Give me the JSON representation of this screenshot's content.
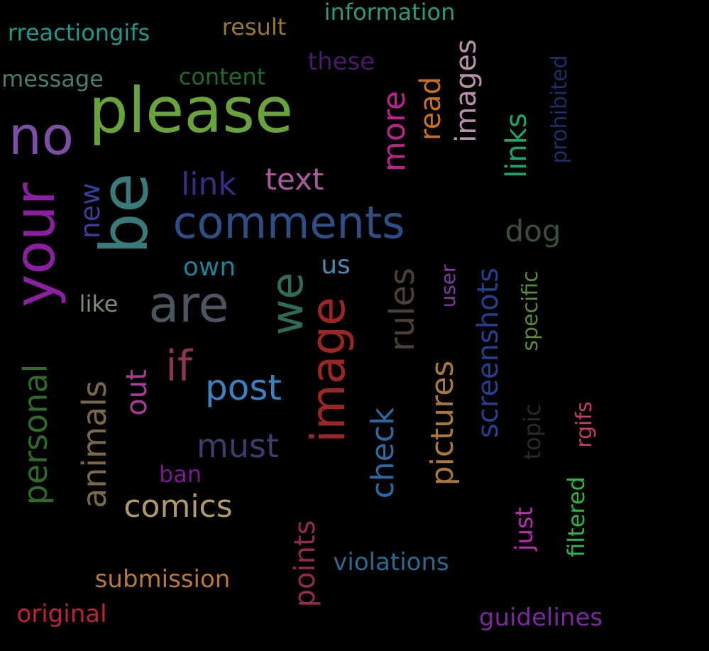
{
  "words": [
    {
      "text": "please",
      "color": "#6aa33a",
      "orientation": "horizontal"
    },
    {
      "text": "your",
      "color": "#8a1fa0",
      "orientation": "vertical"
    },
    {
      "text": "be",
      "color": "#3a7a7a",
      "orientation": "vertical"
    },
    {
      "text": "no",
      "color": "#7b4fa6",
      "orientation": "horizontal"
    },
    {
      "text": "comments",
      "color": "#2e4e86",
      "orientation": "horizontal"
    },
    {
      "text": "are",
      "color": "#4d5560",
      "orientation": "horizontal"
    },
    {
      "text": "we",
      "color": "#2f6b55",
      "orientation": "vertical"
    },
    {
      "text": "image",
      "color": "#9c2626",
      "orientation": "vertical"
    },
    {
      "text": "rules",
      "color": "#4a4036",
      "orientation": "vertical"
    },
    {
      "text": "if",
      "color": "#8c3454",
      "orientation": "horizontal"
    },
    {
      "text": "post",
      "color": "#3c82c0",
      "orientation": "horizontal"
    },
    {
      "text": "personal",
      "color": "#2f6a2a",
      "orientation": "vertical"
    },
    {
      "text": "animals",
      "color": "#7a6848",
      "orientation": "vertical"
    },
    {
      "text": "pictures",
      "color": "#a87838",
      "orientation": "vertical"
    },
    {
      "text": "screenshots",
      "color": "#283e8a",
      "orientation": "vertical"
    },
    {
      "text": "check",
      "color": "#2a6aa0",
      "orientation": "vertical"
    },
    {
      "text": "must",
      "color": "#3a3e68",
      "orientation": "horizontal"
    },
    {
      "text": "comics",
      "color": "#b09a6a",
      "orientation": "horizontal"
    },
    {
      "text": "more",
      "color": "#b8248a",
      "orientation": "vertical"
    },
    {
      "text": "images",
      "color": "#b890aa",
      "orientation": "vertical"
    },
    {
      "text": "read",
      "color": "#c8701c",
      "orientation": "vertical"
    },
    {
      "text": "link",
      "color": "#3e2a88",
      "orientation": "horizontal"
    },
    {
      "text": "text",
      "color": "#a85a9a",
      "orientation": "horizontal"
    },
    {
      "text": "new",
      "color": "#3a3e98",
      "orientation": "vertical"
    },
    {
      "text": "out",
      "color": "#a83a9a",
      "orientation": "vertical"
    },
    {
      "text": "points",
      "color": "#902a50",
      "orientation": "vertical"
    },
    {
      "text": "links",
      "color": "#1aa868",
      "orientation": "vertical"
    },
    {
      "text": "dog",
      "color": "#38503a",
      "orientation": "horizontal"
    },
    {
      "text": "own",
      "color": "#20809a",
      "orientation": "horizontal"
    },
    {
      "text": "us",
      "color": "#4a8ab0",
      "orientation": "horizontal"
    },
    {
      "text": "like",
      "color": "#7a8a7a",
      "orientation": "horizontal"
    },
    {
      "text": "ban",
      "color": "#7a1a90",
      "orientation": "horizontal"
    },
    {
      "text": "submission",
      "color": "#b87a38",
      "orientation": "horizontal"
    },
    {
      "text": "original",
      "color": "#c0203a",
      "orientation": "horizontal"
    },
    {
      "text": "violations",
      "color": "#2a6a90",
      "orientation": "horizontal"
    },
    {
      "text": "guidelines",
      "color": "#7a2a9a",
      "orientation": "horizontal"
    },
    {
      "text": "just",
      "color": "#b82ab0",
      "orientation": "vertical"
    },
    {
      "text": "filtered",
      "color": "#2ab848",
      "orientation": "vertical"
    },
    {
      "text": "rgifs",
      "color": "#c83a6a",
      "orientation": "vertical"
    },
    {
      "text": "topic",
      "color": "#2a2a2a",
      "orientation": "vertical"
    },
    {
      "text": "specific",
      "color": "#5a8a3a",
      "orientation": "vertical"
    },
    {
      "text": "user",
      "color": "#7a3aa0",
      "orientation": "vertical"
    },
    {
      "text": "prohibited",
      "color": "#1e2e6a",
      "orientation": "vertical"
    },
    {
      "text": "content",
      "color": "#1e6a2a",
      "orientation": "horizontal"
    },
    {
      "text": "these",
      "color": "#4a1a6a",
      "orientation": "horizontal"
    },
    {
      "text": "message",
      "color": "#4a7a6a",
      "orientation": "horizontal"
    },
    {
      "text": "result",
      "color": "#9a7a2a",
      "orientation": "horizontal"
    },
    {
      "text": "information",
      "color": "#2a9a7a",
      "orientation": "horizontal"
    },
    {
      "text": "rreactiongifs",
      "color": "#1e9a8a",
      "orientation": "horizontal"
    }
  ]
}
